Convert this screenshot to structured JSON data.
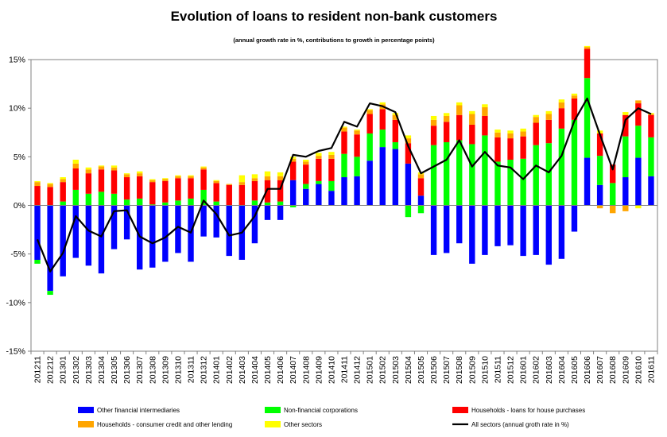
{
  "chart_data": {
    "type": "bar",
    "stacked": true,
    "title": "Evolution of loans to resident non-bank customers",
    "subtitle": "(annual growth rate in %, contributions to growth in percentage points)",
    "ylim": [
      -15,
      15
    ],
    "yticks": [
      "-15%",
      "-10%",
      "-5%",
      "0%",
      "5%",
      "10%",
      "15%"
    ],
    "grid": false,
    "legend_position": "bottom",
    "colors": {
      "other_financial_intermediaries": "#0000ff",
      "non_financial_corporations": "#00ff00",
      "households_house_purchases": "#ff0000",
      "households_consumer_credit": "#ffa500",
      "other_sectors": "#ffff00",
      "all_sectors": "#000000"
    },
    "categories": [
      "201211",
      "201212",
      "201301",
      "201302",
      "201303",
      "201304",
      "201305",
      "201306",
      "201307",
      "201308",
      "201309",
      "201310",
      "201311",
      "201312",
      "201401",
      "201402",
      "201403",
      "201404",
      "201405",
      "201406",
      "201407",
      "201408",
      "201409",
      "201410",
      "201411",
      "201412",
      "201501",
      "201502",
      "201503",
      "201504",
      "201505",
      "201506",
      "201507",
      "201508",
      "201509",
      "201510",
      "201511",
      "201512",
      "201601",
      "201602",
      "201603",
      "201604",
      "201605",
      "201606",
      "201607",
      "201608",
      "201609",
      "201610",
      "201611"
    ],
    "series": [
      {
        "key": "other_financial_intermediaries",
        "name": "Other financial intermediaries",
        "type": "bar",
        "values": [
          -5.6,
          -8.8,
          -7.3,
          -5.4,
          -6.2,
          -7.0,
          -4.5,
          -3.5,
          -6.6,
          -6.4,
          -5.8,
          -4.9,
          -5.8,
          -3.2,
          -3.3,
          -5.2,
          -5.6,
          -3.9,
          -1.5,
          -1.5,
          2.6,
          1.7,
          2.2,
          1.5,
          2.9,
          3.0,
          4.6,
          6.0,
          5.8,
          4.3,
          1.0,
          -5.1,
          -4.9,
          -3.9,
          -6.0,
          -5.1,
          -4.2,
          -4.1,
          -5.2,
          -5.1,
          -6.1,
          -5.5,
          -2.7,
          4.9,
          2.1,
          0.0,
          2.9,
          4.9,
          3.0
        ]
      },
      {
        "key": "non_financial_corporations",
        "name": "Non-financial corporations",
        "type": "bar",
        "values": [
          -0.4,
          -0.4,
          0.4,
          1.6,
          1.2,
          1.4,
          1.2,
          0.6,
          0.7,
          0.1,
          0.3,
          0.5,
          0.7,
          1.6,
          0.4,
          0.0,
          0.0,
          0.5,
          0.3,
          0.4,
          -0.2,
          0.5,
          0.3,
          1.0,
          2.4,
          2.0,
          2.8,
          1.8,
          0.7,
          -1.2,
          -0.8,
          6.2,
          6.5,
          6.7,
          6.3,
          7.2,
          4.5,
          4.7,
          4.8,
          6.2,
          6.4,
          7.9,
          8.8,
          8.2,
          3.0,
          2.3,
          4.2,
          3.3,
          4.0
        ]
      },
      {
        "key": "households_house_purchases",
        "name": "Households - loans for house purchases",
        "type": "bar",
        "values": [
          2.0,
          1.9,
          2.0,
          2.2,
          2.1,
          2.3,
          2.4,
          2.3,
          2.3,
          2.3,
          2.2,
          2.3,
          2.1,
          2.1,
          1.9,
          2.1,
          2.1,
          2.0,
          2.3,
          2.2,
          1.9,
          2.0,
          2.3,
          2.3,
          2.3,
          2.3,
          2.0,
          2.1,
          2.3,
          2.1,
          1.8,
          2.0,
          2.1,
          2.6,
          2.0,
          2.0,
          2.5,
          2.2,
          2.3,
          2.3,
          2.4,
          2.1,
          2.2,
          3.0,
          2.3,
          1.9,
          2.2,
          2.3,
          2.3
        ]
      },
      {
        "key": "households_consumer_credit",
        "name": "Households - consumer credit and other lending",
        "type": "bar",
        "values": [
          0.4,
          0.3,
          0.3,
          0.5,
          0.4,
          0.3,
          0.3,
          0.3,
          0.3,
          0.2,
          0.2,
          0.2,
          0.2,
          0.2,
          0.2,
          0.1,
          0.3,
          0.3,
          0.4,
          0.4,
          0.3,
          0.3,
          0.3,
          0.4,
          0.4,
          0.4,
          0.4,
          0.5,
          0.5,
          0.5,
          0.4,
          0.6,
          0.6,
          1.0,
          1.1,
          0.9,
          0.5,
          0.5,
          0.5,
          0.6,
          0.6,
          0.6,
          0.3,
          0.2,
          -0.3,
          -0.8,
          -0.6,
          0.3,
          0.1
        ]
      },
      {
        "key": "other_sectors",
        "name": "Other sectors",
        "type": "bar",
        "values": [
          0.1,
          0.1,
          0.2,
          0.4,
          0.2,
          0.1,
          0.2,
          0.1,
          0.2,
          0.1,
          0.1,
          0.1,
          0.1,
          0.1,
          0.1,
          0.0,
          0.7,
          0.4,
          0.5,
          0.4,
          0.2,
          0.2,
          0.3,
          0.3,
          0.1,
          0.1,
          0.1,
          0.2,
          0.2,
          0.3,
          0.2,
          0.4,
          0.3,
          0.3,
          0.3,
          0.3,
          0.3,
          0.3,
          0.3,
          0.2,
          0.3,
          0.3,
          0.2,
          0.1,
          0.3,
          0.0,
          0.3,
          -0.3,
          0.1
        ]
      },
      {
        "key": "all_sectors",
        "name": "All sectors (annual groth rate in %)",
        "type": "line",
        "values": [
          -3.5,
          -6.8,
          -4.9,
          -1.1,
          -2.6,
          -3.2,
          -0.6,
          -0.5,
          -3.2,
          -3.9,
          -3.3,
          -2.2,
          -2.8,
          0.5,
          -0.9,
          -3.1,
          -2.8,
          -1.1,
          1.7,
          1.7,
          5.2,
          5.0,
          5.6,
          5.9,
          8.6,
          8.1,
          10.5,
          10.2,
          9.6,
          6.1,
          3.3,
          4.0,
          4.7,
          6.7,
          4.0,
          5.5,
          4.1,
          3.9,
          2.7,
          4.1,
          3.4,
          5.1,
          8.7,
          11.0,
          7.3,
          3.7,
          8.8,
          10.0,
          9.4
        ]
      }
    ]
  }
}
